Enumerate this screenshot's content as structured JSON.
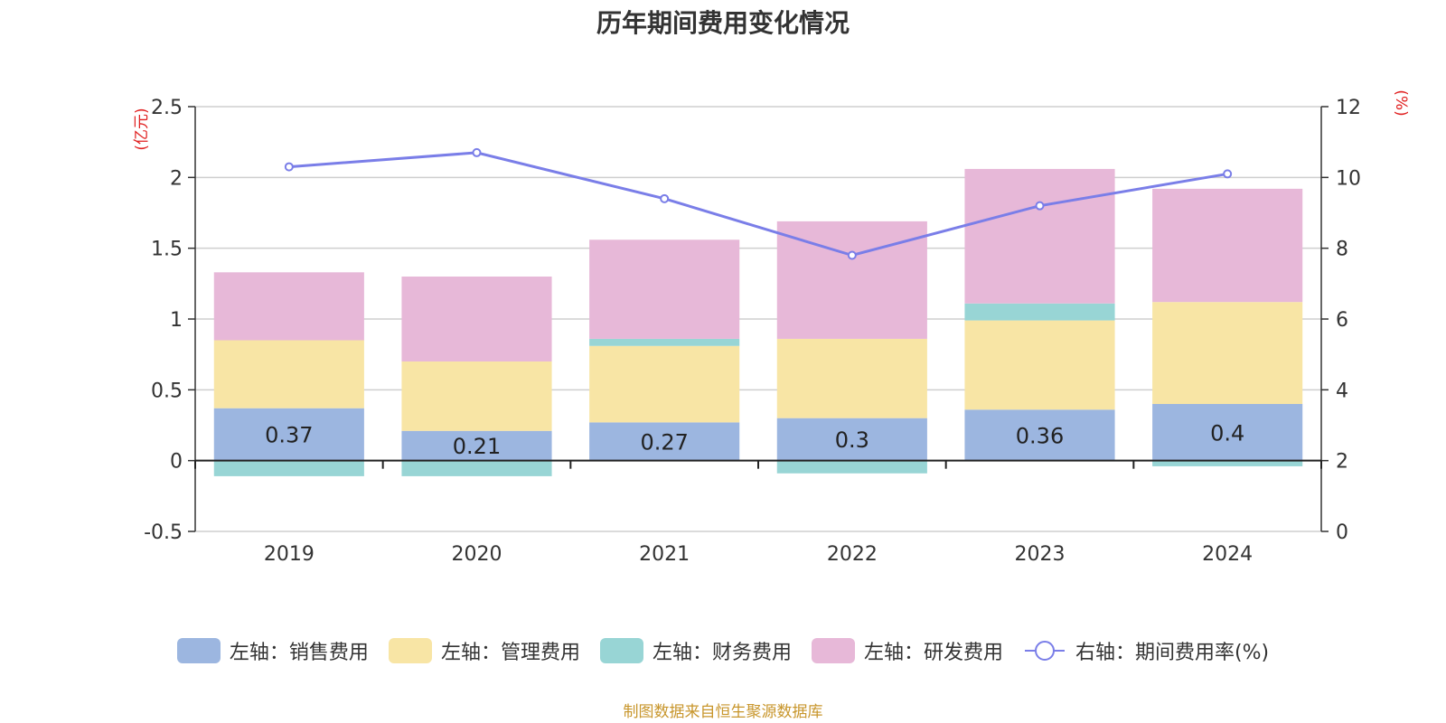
{
  "chart_data": {
    "type": "bar",
    "stacked": true,
    "title": "历年期间费用变化情况",
    "categories": [
      "2019",
      "2020",
      "2021",
      "2022",
      "2023",
      "2024"
    ],
    "left_axis": {
      "unit_label": "(亿元)",
      "ylim": [
        -0.5,
        2.5
      ],
      "ticks": [
        "-0.5",
        "0",
        "0.5",
        "1",
        "1.5",
        "2",
        "2.5"
      ]
    },
    "right_axis": {
      "unit_label": "(%)",
      "ylim": [
        0,
        12
      ],
      "ticks": [
        "0",
        "2",
        "4",
        "6",
        "8",
        "10",
        "12"
      ]
    },
    "series": [
      {
        "name": "左轴：销售费用",
        "type": "bar",
        "color": "#9cb6e0",
        "values": [
          0.37,
          0.21,
          0.27,
          0.3,
          0.36,
          0.4
        ],
        "data_labels": [
          "0.37",
          "0.21",
          "0.27",
          "0.3",
          "0.36",
          "0.4"
        ]
      },
      {
        "name": "左轴：管理费用",
        "type": "bar",
        "color": "#f8e5a5",
        "values": [
          0.48,
          0.49,
          0.54,
          0.56,
          0.63,
          0.72
        ]
      },
      {
        "name": "左轴：财务费用",
        "type": "bar",
        "color": "#98d5d5",
        "values": [
          -0.11,
          -0.11,
          0.05,
          -0.09,
          0.12,
          -0.04
        ]
      },
      {
        "name": "左轴：研发费用",
        "type": "bar",
        "color": "#e7b8d8",
        "values": [
          0.48,
          0.6,
          0.7,
          0.83,
          0.95,
          0.8
        ]
      },
      {
        "name": "右轴：期间费用率(%)",
        "type": "line",
        "axis": "right",
        "color": "#7a7ee8",
        "values": [
          10.3,
          10.7,
          9.4,
          7.8,
          9.2,
          10.1
        ]
      }
    ],
    "grid": true,
    "legend_position": "bottom"
  },
  "source_note": "制图数据来自恒生聚源数据库"
}
